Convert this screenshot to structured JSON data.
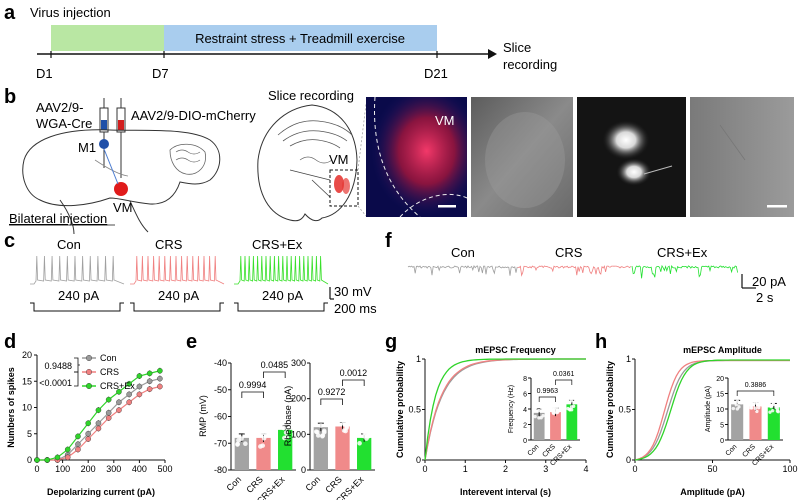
{
  "panels": {
    "a": "a",
    "b": "b",
    "c": "c",
    "d": "d",
    "e": "e",
    "f": "f",
    "g": "g",
    "h": "h"
  },
  "timeline": {
    "virus_label": "Virus injection",
    "stress_label": "Restraint stress + Treadmill exercise",
    "d1": "D1",
    "d7": "D7",
    "d21": "D21",
    "slice_line1": "Slice",
    "slice_line2": "recording",
    "colors": {
      "virus": "#b9e7a3",
      "stress": "#a9cdee"
    }
  },
  "schematic": {
    "virus1_line1": "AAV2/9-",
    "virus1_line2": "WGA-Cre",
    "virus2": "AAV2/9-DIO-mCherry",
    "m1": "M1",
    "vm": "VM",
    "bilateral": "Bilateral injection",
    "slice_title": "Slice recording",
    "vm_slice": "VM",
    "vm_image": "VM"
  },
  "traces_c": {
    "groups": [
      "Con",
      "CRS",
      "CRS+Ex"
    ],
    "current": "240 pA",
    "scale_mv": "30 mV",
    "scale_ms": "200 ms",
    "colors": {
      "Con": "#a0a0a0",
      "CRS": "#f08080",
      "CRS+Ex": "#39e02a"
    }
  },
  "traces_f": {
    "groups": [
      "Con",
      "CRS",
      "CRS+Ex"
    ],
    "scale_pa": "20 pA",
    "scale_s": "2 s"
  },
  "chart_data": [
    {
      "id": "d",
      "type": "line",
      "xlabel": "Depolarizing current (pA)",
      "ylabel": "Numbers of spikes",
      "xlim": [
        0,
        500
      ],
      "ylim": [
        0,
        20
      ],
      "xticks": [
        0,
        100,
        200,
        300,
        400,
        500
      ],
      "yticks": [
        0,
        5,
        10,
        15,
        20
      ],
      "x": [
        0,
        40,
        80,
        120,
        160,
        200,
        240,
        280,
        320,
        360,
        400,
        440,
        480
      ],
      "series": [
        {
          "name": "Con",
          "color": "#9a9a9a",
          "values": [
            0,
            0,
            0,
            1,
            3,
            5,
            7,
            9,
            11,
            12.5,
            14,
            15,
            15.5
          ]
        },
        {
          "name": "CRS",
          "color": "#f08080",
          "values": [
            0,
            0,
            0,
            0.5,
            2,
            4,
            6,
            8,
            9.5,
            11,
            12.5,
            13.5,
            14
          ]
        },
        {
          "name": "CRS+Ex",
          "color": "#2fd42a",
          "values": [
            0,
            0,
            0.5,
            2,
            4.5,
            7,
            9.5,
            11.5,
            13,
            14.5,
            16,
            16.5,
            17
          ]
        }
      ],
      "annotations": [
        "0.9488",
        "<0.0001"
      ]
    },
    {
      "id": "e1",
      "type": "bar",
      "ylabel": "RMP (mV)",
      "categories": [
        "Con",
        "CRS",
        "CRS+Ex"
      ],
      "values": [
        -68,
        -68,
        -65
      ],
      "ylim": [
        -80,
        -40
      ],
      "yticks": [
        -80,
        -70,
        -60,
        -50,
        -40
      ],
      "colors": [
        "#a3a3a3",
        "#f08a8a",
        "#22e030"
      ],
      "p_values": [
        "0.9994",
        "0.0485"
      ]
    },
    {
      "id": "e2",
      "type": "bar",
      "ylabel": "Rheobase (pA)",
      "categories": [
        "Con",
        "CRS",
        "CRS+Ex"
      ],
      "values": [
        120,
        122,
        90
      ],
      "ylim": [
        0,
        300
      ],
      "yticks": [
        0,
        100,
        200,
        300
      ],
      "colors": [
        "#a3a3a3",
        "#f08a8a",
        "#22e030"
      ],
      "p_values": [
        "0.9272",
        "0.0012"
      ]
    },
    {
      "id": "g",
      "type": "line",
      "title": "mEPSC Frequency",
      "xlabel": "Interevent interval (s)",
      "ylabel": "Cumulative probability",
      "xlim": [
        0,
        4
      ],
      "ylim": [
        0,
        1
      ],
      "xticks": [
        0,
        1,
        2,
        3,
        4
      ],
      "yticks": [
        0,
        0.5,
        1
      ],
      "inset": {
        "ylabel": "Frequency (Hz)",
        "categories": [
          "Con",
          "CRS",
          "CRS+Ex"
        ],
        "values": [
          3.5,
          3.6,
          4.6
        ],
        "ylim": [
          0,
          8
        ],
        "yticks": [
          0,
          2,
          4,
          6,
          8
        ],
        "p_values": [
          "0.9963",
          "0.0361"
        ]
      }
    },
    {
      "id": "h",
      "type": "line",
      "title": "mEPSC Amplitude",
      "xlabel": "Amplitude (pA)",
      "ylabel": "Cumulative probability",
      "xlim": [
        0,
        100
      ],
      "ylim": [
        0,
        1
      ],
      "xticks": [
        0,
        50,
        100
      ],
      "yticks": [
        0,
        0.5,
        1
      ],
      "inset": {
        "ylabel": "Amplitude (pA)",
        "categories": [
          "Con",
          "CRS",
          "CRS+Ex"
        ],
        "values": [
          11.5,
          10.8,
          10.5
        ],
        "ylim": [
          0,
          20
        ],
        "yticks": [
          0,
          5,
          10,
          15,
          20
        ],
        "p_values": [
          "0.3886"
        ]
      }
    }
  ]
}
